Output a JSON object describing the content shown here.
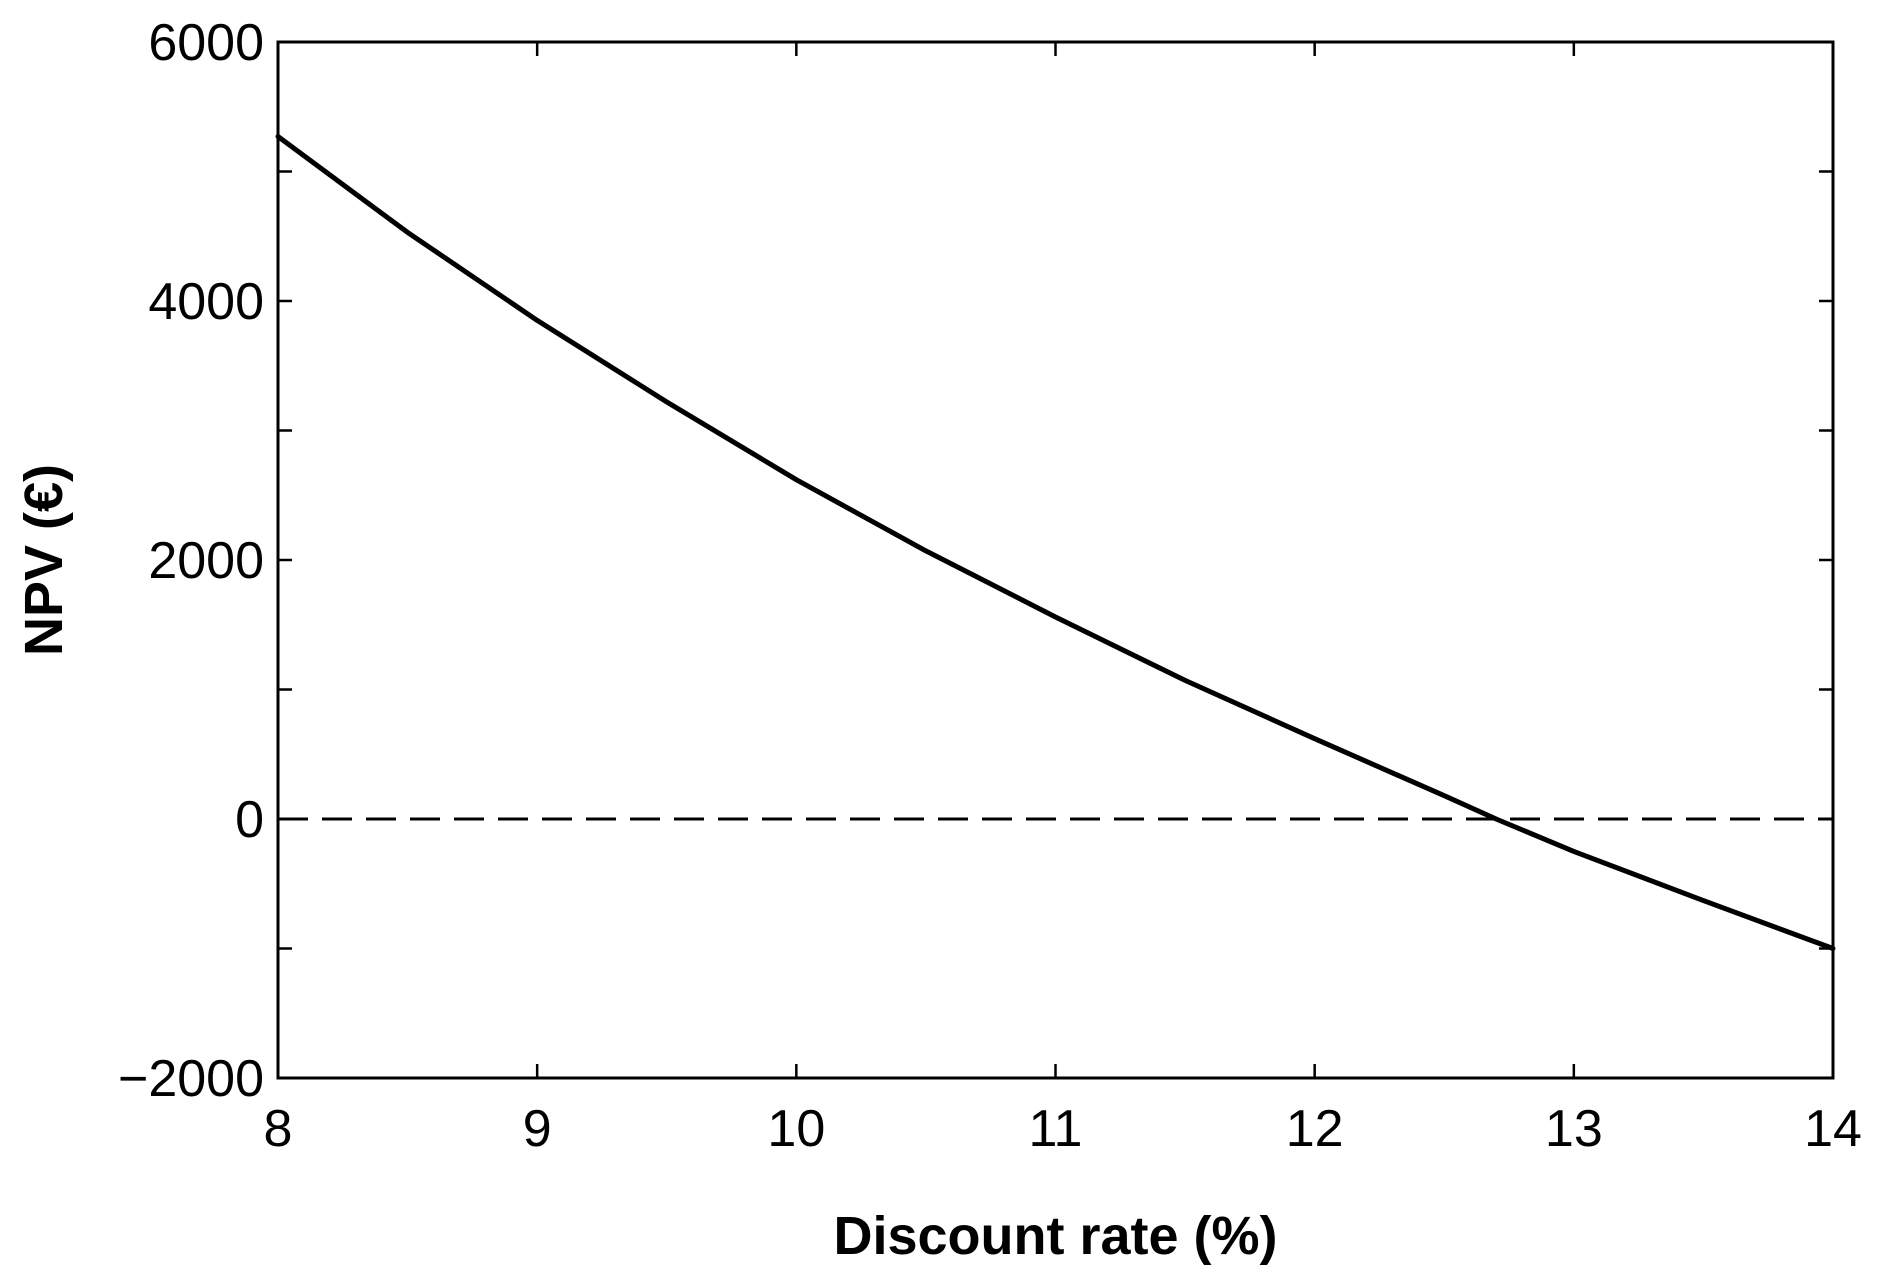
{
  "chart_data": {
    "type": "line",
    "title": "",
    "xlabel": "Discount rate (%)",
    "ylabel": "NPV (€)",
    "xlim": [
      8,
      14
    ],
    "ylim": [
      -2000,
      6000
    ],
    "x_ticks": [
      8,
      9,
      10,
      11,
      12,
      13,
      14
    ],
    "x_tick_labels": [
      "8",
      "9",
      "10",
      "11",
      "12",
      "13",
      "14"
    ],
    "y_ticks": [
      -2000,
      0,
      2000,
      4000,
      6000
    ],
    "y_tick_labels": [
      "−2000",
      "0",
      "2000",
      "4000",
      "6000"
    ],
    "y_minor_ticks": [
      -1000,
      1000,
      3000,
      5000
    ],
    "grid": false,
    "series": [
      {
        "color": "#000000",
        "line_style": "solid",
        "x": [
          8.0,
          8.5,
          9.0,
          9.5,
          10.0,
          10.5,
          11.0,
          11.5,
          12.0,
          12.5,
          12.7,
          13.0,
          13.5,
          14.0
        ],
        "y": [
          5270,
          4530,
          3850,
          3220,
          2620,
          2070,
          1560,
          1070,
          620,
          180,
          0,
          -250,
          -630,
          -1000
        ]
      }
    ],
    "reference_lines": [
      {
        "orientation": "horizontal",
        "y": 0,
        "color": "#000000",
        "line_style": "dashed"
      }
    ]
  }
}
